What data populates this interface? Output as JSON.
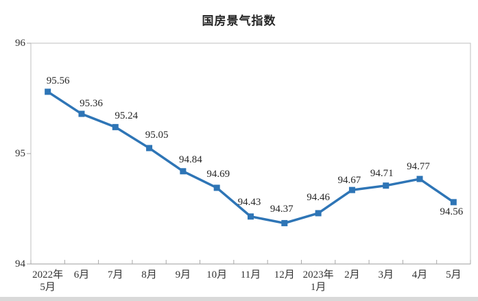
{
  "title": "国房景气指数",
  "chart_data": {
    "type": "line",
    "title": "国房景气指数",
    "categories": [
      "2022年\n5月",
      "6月",
      "7月",
      "8月",
      "9月",
      "10月",
      "11月",
      "12月",
      "2023年\n1月",
      "2月",
      "3月",
      "4月",
      "5月"
    ],
    "values": [
      95.56,
      95.36,
      95.24,
      95.05,
      94.84,
      94.69,
      94.43,
      94.37,
      94.46,
      94.67,
      94.71,
      94.77,
      94.56
    ],
    "labels": [
      "95.56",
      "95.36",
      "95.24",
      "95.05",
      "94.84",
      "94.69",
      "94.43",
      "94.37",
      "94.46",
      "94.67",
      "94.71",
      "94.77",
      "94.56"
    ],
    "yticks": [
      "96",
      "95",
      "94"
    ],
    "ytick_values": [
      96,
      95,
      94
    ],
    "ylim": [
      94,
      96
    ],
    "xlabel": "",
    "ylabel": "",
    "grid": false,
    "legend": "none",
    "line_color": "#2E75B6",
    "marker": "square",
    "label_color": "#262626",
    "axis_border_color": "#BFBFBF",
    "tick_color": "#A6A6A6"
  }
}
